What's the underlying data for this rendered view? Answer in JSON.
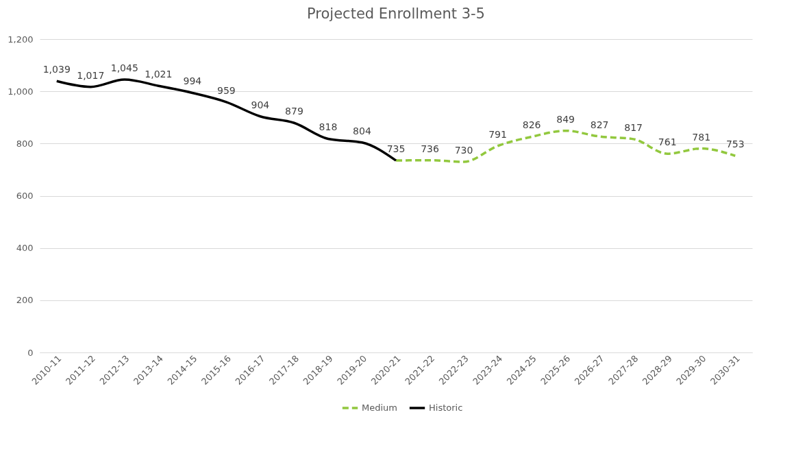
{
  "chart_data": {
    "type": "line",
    "title": "Projected Enrollment 3-5",
    "categories": [
      "2010-11",
      "2011-12",
      "2012-13",
      "2013-14",
      "2014-15",
      "2015-16",
      "2016-17",
      "2017-18",
      "2018-19",
      "2019-20",
      "2020-21",
      "2021-22",
      "2022-23",
      "2023-24",
      "2024-25",
      "2025-26",
      "2026-27",
      "2027-28",
      "2028-29",
      "2029-30",
      "2030-31"
    ],
    "series": [
      {
        "name": "Medium",
        "color": "#92c83e",
        "line_style": "dashed",
        "values": [
          null,
          null,
          null,
          null,
          null,
          null,
          null,
          null,
          null,
          null,
          735,
          736,
          730,
          791,
          826,
          849,
          827,
          817,
          761,
          781,
          753
        ],
        "value_labels": [
          null,
          null,
          null,
          null,
          null,
          null,
          null,
          null,
          null,
          null,
          null,
          "736",
          "730",
          "791",
          "826",
          "849",
          "827",
          "817",
          "761",
          "781",
          "753"
        ]
      },
      {
        "name": "Historic",
        "color": "#000000",
        "line_style": "solid",
        "values": [
          1039,
          1017,
          1045,
          1021,
          994,
          959,
          904,
          879,
          818,
          804,
          735,
          null,
          null,
          null,
          null,
          null,
          null,
          null,
          null,
          null,
          null
        ],
        "value_labels": [
          "1,039",
          "1,017",
          "1,045",
          "1,021",
          "994",
          "959",
          "904",
          "879",
          "818",
          "804",
          "735",
          null,
          null,
          null,
          null,
          null,
          null,
          null,
          null,
          null,
          null
        ]
      }
    ],
    "ylim": [
      0,
      1200
    ],
    "yticks": [
      0,
      200,
      400,
      600,
      800,
      {
        "value": 1000,
        "label": "1,000"
      },
      {
        "value": 1200,
        "label": "1,200"
      }
    ],
    "grid": "y",
    "legend": "bottom",
    "marker": "none"
  }
}
